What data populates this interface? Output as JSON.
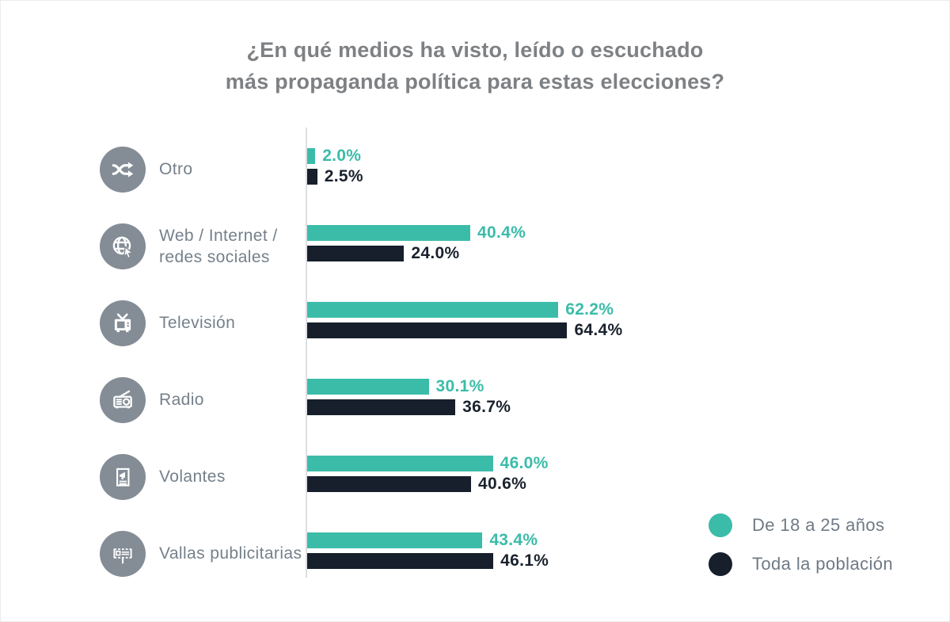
{
  "title": {
    "line1": "¿En qué medios ha visto, leído o escuchado",
    "line2": "más propaganda política para estas elecciones?"
  },
  "chart_data": {
    "type": "bar",
    "orientation": "horizontal",
    "title": "¿En qué medios ha visto, leído o escuchado más propaganda política para estas elecciones?",
    "unit": "%",
    "xlim": [
      0,
      100
    ],
    "grid": false,
    "legend_position": "bottom-right",
    "categories": [
      "Otro",
      "Web / Internet / redes sociales",
      "Televisión",
      "Radio",
      "Volantes",
      "Vallas publicitarias"
    ],
    "series": [
      {
        "name": "De 18 a 25 años",
        "color": "#3BBCA9",
        "values": [
          2.0,
          40.4,
          62.2,
          30.1,
          46.0,
          43.4
        ]
      },
      {
        "name": "Toda la población",
        "color": "#161F2B",
        "values": [
          2.5,
          24.0,
          64.4,
          36.7,
          40.6,
          46.1
        ]
      }
    ],
    "value_label_colors": {
      "youth": "#3BBCA9",
      "all": "#1A222D"
    },
    "rows": [
      {
        "icon": "shuffle-icon",
        "label": "Otro",
        "values": {
          "youth": 2.0,
          "all": 2.5
        },
        "display": {
          "youth": "2.0%",
          "all": "2.5%"
        }
      },
      {
        "icon": "globe-cursor-icon",
        "label": "Web / Internet /\nredes sociales",
        "values": {
          "youth": 40.4,
          "all": 24.0
        },
        "display": {
          "youth": "40.4%",
          "all": "24.0%"
        }
      },
      {
        "icon": "tv-icon",
        "label": "Televisión",
        "values": {
          "youth": 62.2,
          "all": 64.4
        },
        "display": {
          "youth": "62.2%",
          "all": "64.4%"
        }
      },
      {
        "icon": "radio-icon",
        "label": "Radio",
        "values": {
          "youth": 30.1,
          "all": 36.7
        },
        "display": {
          "youth": "30.1%",
          "all": "36.7%"
        }
      },
      {
        "icon": "flyer-icon",
        "label": "Volantes",
        "values": {
          "youth": 46.0,
          "all": 40.6
        },
        "display": {
          "youth": "46.0%",
          "all": "40.6%"
        }
      },
      {
        "icon": "billboard-icon",
        "label": "Vallas publicitarias",
        "values": {
          "youth": 43.4,
          "all": 46.1
        },
        "display": {
          "youth": "43.4%",
          "all": "46.1%"
        }
      }
    ]
  },
  "legend": {
    "items": [
      {
        "label": "De 18 a 25 años",
        "color": "#3BBCA9"
      },
      {
        "label": "Toda la población",
        "color": "#161F2B"
      }
    ]
  },
  "colors": {
    "accent_teal": "#3BBCA9",
    "accent_dark": "#161F2B",
    "icon_gray": "#848D96",
    "label_gray": "#75808B",
    "title_gray": "#7E8184",
    "axis_gray": "#DDDFE2"
  }
}
